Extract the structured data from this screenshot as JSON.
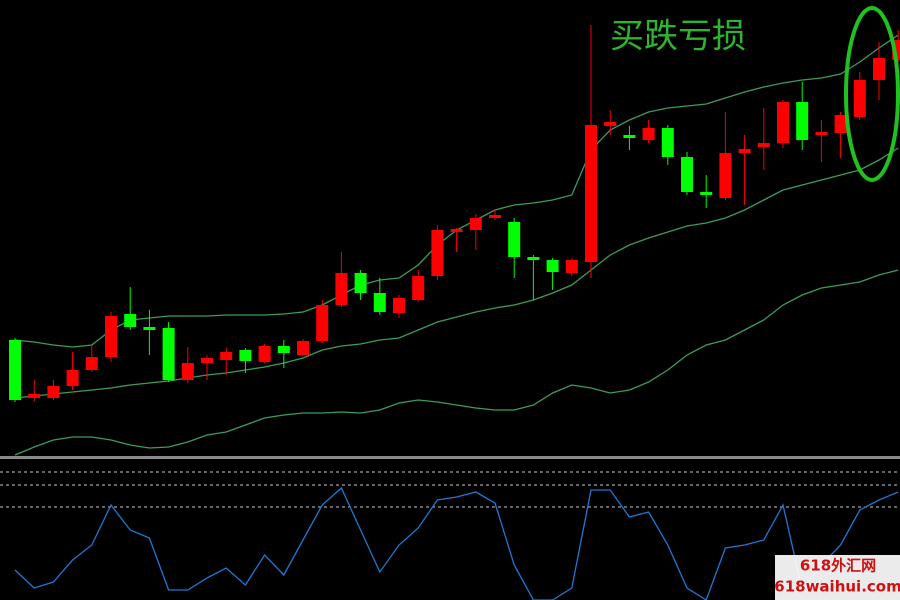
{
  "chart_data": [
    {
      "type": "candlestick",
      "title": "买跌亏损",
      "ylim": [
        0,
        455
      ],
      "up_color": "#ff0000",
      "down_color": "#00ff00",
      "open": [
        115,
        57,
        57,
        69,
        85,
        98,
        141,
        128,
        127,
        75,
        92,
        95,
        105,
        93,
        109,
        100,
        114,
        150,
        182,
        162,
        142,
        155,
        179,
        223,
        225,
        237,
        233,
        198,
        195,
        182,
        193,
        329,
        320,
        315,
        327,
        298,
        263,
        257,
        302,
        308,
        312,
        353,
        320,
        322,
        338,
        375,
        395
      ],
      "close": [
        55,
        61,
        69,
        85,
        98,
        139,
        128,
        125,
        75,
        92,
        97,
        103,
        94,
        109,
        102,
        114,
        150,
        182,
        162,
        143,
        157,
        179,
        225,
        226,
        237,
        240,
        198,
        195,
        183,
        195,
        330,
        333,
        317,
        327,
        298,
        263,
        260,
        302,
        306,
        312,
        353,
        315,
        323,
        340,
        375,
        397,
        415
      ],
      "high": [
        117,
        75,
        75,
        103,
        110,
        143,
        168,
        145,
        133,
        108,
        100,
        107,
        107,
        111,
        115,
        116,
        155,
        203,
        185,
        177,
        160,
        185,
        230,
        227,
        241,
        245,
        237,
        200,
        197,
        197,
        430,
        345,
        329,
        335,
        330,
        303,
        280,
        343,
        320,
        347,
        355,
        373,
        335,
        343,
        383,
        413,
        425
      ],
      "low": [
        53,
        53,
        55,
        65,
        83,
        93,
        125,
        100,
        73,
        72,
        75,
        80,
        82,
        92,
        87,
        99,
        112,
        148,
        155,
        140,
        137,
        153,
        175,
        203,
        205,
        235,
        177,
        155,
        165,
        179,
        177,
        320,
        305,
        312,
        290,
        260,
        247,
        255,
        250,
        285,
        307,
        305,
        293,
        297,
        335,
        355,
        393
      ],
      "series": [
        {
          "color": "#3d9b5c",
          "values": [
            115,
            113,
            110,
            108,
            110,
            125,
            135,
            137,
            139,
            139,
            139,
            140,
            140,
            140,
            141,
            143,
            150,
            160,
            170,
            175,
            177,
            190,
            210,
            225,
            235,
            245,
            250,
            252,
            255,
            260,
            305,
            325,
            335,
            343,
            347,
            349,
            351,
            357,
            363,
            368,
            372,
            375,
            377,
            381,
            393,
            407,
            420
          ]
        },
        {
          "color": "#3d9b5c",
          "values": [
            57,
            59,
            61,
            63,
            65,
            67,
            70,
            72,
            74,
            77,
            80,
            82,
            85,
            88,
            92,
            97,
            105,
            109,
            111,
            115,
            117,
            125,
            133,
            138,
            143,
            147,
            150,
            155,
            162,
            170,
            185,
            200,
            210,
            217,
            223,
            229,
            232,
            237,
            245,
            255,
            265,
            270,
            275,
            280,
            285,
            295,
            307
          ]
        },
        {
          "color": "#3d9b5c",
          "values": [
            0,
            8,
            15,
            18,
            18,
            15,
            10,
            7,
            8,
            13,
            20,
            23,
            30,
            37,
            40,
            42,
            42,
            43,
            42,
            45,
            52,
            55,
            53,
            50,
            47,
            45,
            45,
            50,
            62,
            70,
            67,
            62,
            65,
            73,
            85,
            100,
            110,
            115,
            125,
            135,
            150,
            160,
            167,
            170,
            173,
            180,
            185
          ]
        }
      ]
    },
    {
      "type": "line",
      "ylim": [
        0,
        140
      ],
      "levels": [
        128,
        115,
        93
      ],
      "level_color": "#c8c8c8",
      "series": [
        {
          "color": "#1e78d2",
          "values": [
            30,
            12,
            18,
            40,
            55,
            95,
            70,
            62,
            10,
            10,
            22,
            32,
            15,
            45,
            25,
            60,
            95,
            112,
            70,
            28,
            55,
            72,
            100,
            103,
            108,
            97,
            35,
            0,
            0,
            12,
            110,
            110,
            83,
            88,
            55,
            12,
            0,
            52,
            55,
            60,
            95,
            10,
            35,
            55,
            90,
            100,
            108
          ]
        }
      ]
    }
  ],
  "watermark": {
    "line1": "618外汇网",
    "line2": "618waihui.com"
  }
}
